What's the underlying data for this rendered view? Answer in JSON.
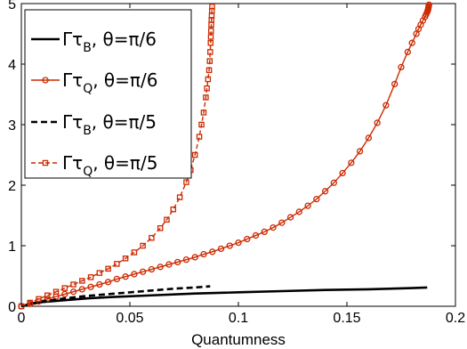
{
  "chart_data": {
    "type": "line",
    "xlabel": "Quantumness",
    "ylabel": "",
    "xlim": [
      0,
      0.2
    ],
    "ylim": [
      0,
      5
    ],
    "x_ticks": [
      "0",
      "0.05",
      "0.1",
      "0.15",
      "0.2"
    ],
    "y_ticks": [
      "0",
      "1",
      "2",
      "3",
      "4",
      "5"
    ],
    "grid": false,
    "legend_position": "top-left",
    "series": [
      {
        "name": "Γτ_B, θ=π/6",
        "legend": {
          "main": "Γτ",
          "sub": "B",
          "tail": ", θ=π/6"
        },
        "color": "#000000",
        "style": "solid",
        "marker": "none",
        "x": [
          0,
          0.005,
          0.01,
          0.02,
          0.03,
          0.04,
          0.06,
          0.08,
          0.1,
          0.12,
          0.14,
          0.16,
          0.18,
          0.187
        ],
        "y": [
          0,
          0.04,
          0.07,
          0.1,
          0.13,
          0.15,
          0.18,
          0.21,
          0.23,
          0.25,
          0.27,
          0.28,
          0.3,
          0.31
        ]
      },
      {
        "name": "Γτ_Q, θ=π/6",
        "legend": {
          "main": "Γτ",
          "sub": "Q",
          "tail": ", θ=π/6"
        },
        "color": "#cc2a00",
        "style": "solid",
        "marker": "circle",
        "x": [
          0,
          0.004,
          0.008,
          0.012,
          0.016,
          0.02,
          0.024,
          0.028,
          0.032,
          0.036,
          0.04,
          0.044,
          0.048,
          0.052,
          0.056,
          0.06,
          0.064,
          0.068,
          0.072,
          0.076,
          0.08,
          0.084,
          0.088,
          0.092,
          0.096,
          0.1,
          0.104,
          0.108,
          0.112,
          0.116,
          0.12,
          0.124,
          0.128,
          0.132,
          0.136,
          0.14,
          0.144,
          0.148,
          0.152,
          0.156,
          0.16,
          0.164,
          0.168,
          0.172,
          0.175,
          0.178,
          0.18,
          0.182,
          0.183,
          0.184,
          0.185,
          0.186,
          0.1865,
          0.187,
          0.1872,
          0.1874,
          0.1875,
          0.1876,
          0.1877,
          0.1878
        ],
        "y": [
          0,
          0.04,
          0.08,
          0.12,
          0.16,
          0.2,
          0.24,
          0.28,
          0.32,
          0.36,
          0.4,
          0.45,
          0.49,
          0.53,
          0.57,
          0.61,
          0.65,
          0.69,
          0.73,
          0.77,
          0.81,
          0.86,
          0.9,
          0.95,
          1.0,
          1.05,
          1.11,
          1.17,
          1.23,
          1.3,
          1.38,
          1.47,
          1.56,
          1.66,
          1.77,
          1.9,
          2.04,
          2.2,
          2.37,
          2.56,
          2.78,
          3.03,
          3.32,
          3.67,
          3.95,
          4.2,
          4.35,
          4.5,
          4.58,
          4.65,
          4.72,
          4.78,
          4.82,
          4.86,
          4.88,
          4.9,
          4.92,
          4.94,
          4.96,
          4.98
        ]
      },
      {
        "name": "Γτ_B, θ=π/5",
        "legend": {
          "main": "Γτ",
          "sub": "B",
          "tail": ", θ=π/5"
        },
        "color": "#000000",
        "style": "dashed",
        "marker": "none",
        "x": [
          0,
          0.005,
          0.01,
          0.02,
          0.03,
          0.04,
          0.05,
          0.06,
          0.07,
          0.08,
          0.087
        ],
        "y": [
          0,
          0.05,
          0.08,
          0.13,
          0.17,
          0.2,
          0.23,
          0.26,
          0.29,
          0.31,
          0.33
        ]
      },
      {
        "name": "Γτ_Q, θ=π/5",
        "legend": {
          "main": "Γτ",
          "sub": "Q",
          "tail": ", θ=π/5"
        },
        "color": "#cc2a00",
        "style": "dashed",
        "marker": "square",
        "x": [
          0,
          0.004,
          0.008,
          0.012,
          0.016,
          0.02,
          0.024,
          0.028,
          0.032,
          0.036,
          0.04,
          0.044,
          0.048,
          0.052,
          0.056,
          0.06,
          0.064,
          0.067,
          0.07,
          0.073,
          0.076,
          0.078,
          0.08,
          0.082,
          0.083,
          0.084,
          0.085,
          0.0855,
          0.086,
          0.0865,
          0.0868,
          0.087,
          0.0872,
          0.0873,
          0.0874,
          0.0875,
          0.0876,
          0.0877,
          0.0878,
          0.0879
        ],
        "y": [
          0,
          0.06,
          0.12,
          0.18,
          0.24,
          0.3,
          0.36,
          0.42,
          0.48,
          0.55,
          0.62,
          0.7,
          0.79,
          0.89,
          1.0,
          1.13,
          1.29,
          1.43,
          1.6,
          1.8,
          2.05,
          2.25,
          2.5,
          2.8,
          3.0,
          3.2,
          3.45,
          3.6,
          3.75,
          3.9,
          4.05,
          4.2,
          4.35,
          4.45,
          4.55,
          4.65,
          4.73,
          4.8,
          4.88,
          4.95
        ]
      }
    ]
  }
}
